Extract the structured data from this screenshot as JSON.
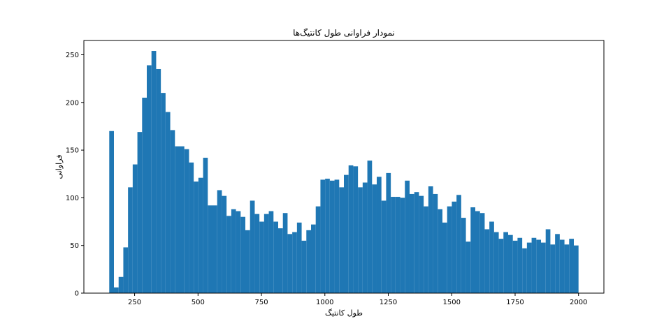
{
  "chart_data": {
    "type": "bar",
    "title": "نمودار فراوانی طول کانتیگ‌ها",
    "xlabel": "طول کانتیگ",
    "ylabel": "فراوانی",
    "xlim": [
      50,
      2100
    ],
    "ylim": [
      0,
      265
    ],
    "xticks": [
      250,
      500,
      750,
      1000,
      1250,
      1500,
      1750,
      2000
    ],
    "yticks": [
      0,
      50,
      100,
      150,
      200,
      250
    ],
    "grid": false,
    "bar_color": "#1f77b4",
    "bin_edges": [
      150,
      168.5,
      187,
      205.5,
      224,
      242.5,
      261,
      279.5,
      298,
      316.5,
      335,
      353.5,
      372,
      390.5,
      409,
      427.5,
      446,
      464.5,
      483,
      501.5,
      520,
      538.5,
      557,
      575.5,
      594,
      612.5,
      631,
      649.5,
      668,
      686.5,
      705,
      723.5,
      742,
      760.5,
      779,
      797.5,
      816,
      834.5,
      853,
      871.5,
      890,
      908.5,
      927,
      945.5,
      964,
      982.5,
      1001,
      1019.5,
      1038,
      1056.5,
      1075,
      1093.5,
      1112,
      1130.5,
      1149,
      1167.5,
      1186,
      1204.5,
      1223,
      1241.5,
      1260,
      1278.5,
      1297,
      1315.5,
      1334,
      1352.5,
      1371,
      1389.5,
      1408,
      1426.5,
      1445,
      1463.5,
      1482,
      1500.5,
      1519,
      1537.5,
      1556,
      1574.5,
      1593,
      1611.5,
      1630,
      1648.5,
      1667,
      1685.5,
      1704,
      1722.5,
      1741,
      1759.5,
      1778,
      1796.5,
      1815,
      1833.5,
      1852,
      1870.5,
      1889,
      1907.5,
      1926,
      1944.5,
      1963,
      1981.5,
      2000
    ],
    "values": [
      170,
      6,
      17,
      48,
      111,
      135,
      169,
      205,
      239,
      254,
      235,
      210,
      190,
      171,
      154,
      154,
      151,
      137,
      117,
      121,
      142,
      92,
      92,
      108,
      102,
      81,
      88,
      86,
      80,
      66,
      97,
      83,
      75,
      83,
      86,
      75,
      68,
      84,
      62,
      64,
      74,
      55,
      66,
      72,
      91,
      119,
      120,
      118,
      119,
      111,
      124,
      134,
      133,
      111,
      116,
      139,
      114,
      122,
      97,
      126,
      101,
      101,
      100,
      118,
      104,
      106,
      102,
      91,
      112,
      104,
      88,
      74,
      91,
      96,
      103,
      79,
      54,
      90,
      86,
      84,
      67,
      75,
      64,
      57,
      64,
      61,
      55,
      58,
      47,
      53,
      58,
      56,
      53,
      67,
      51,
      62,
      56,
      51,
      57,
      50
    ]
  }
}
